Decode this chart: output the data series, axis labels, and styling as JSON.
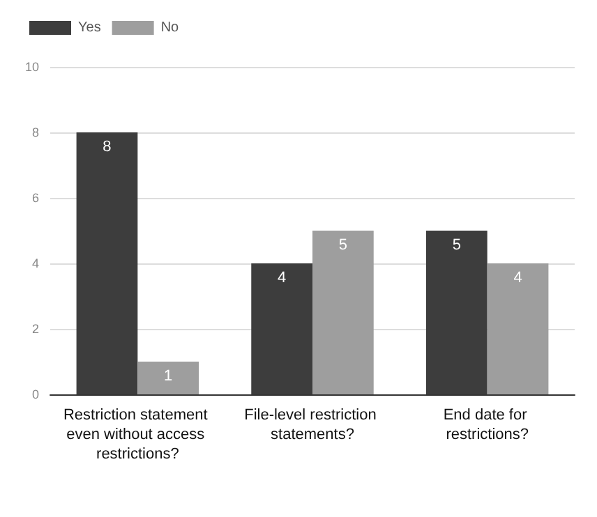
{
  "chart_data": {
    "type": "bar",
    "categories": [
      "Restriction statement even without access restrictions?",
      "File-level restriction statements?",
      "End date for restrictions?"
    ],
    "series": [
      {
        "name": "Yes",
        "color": "#3d3d3d",
        "values": [
          8,
          4,
          5
        ]
      },
      {
        "name": "No",
        "color": "#9e9e9e",
        "values": [
          1,
          5,
          4
        ]
      }
    ],
    "ylim": [
      0,
      10
    ],
    "yticks": [
      0,
      2,
      4,
      6,
      8,
      10
    ],
    "grid": "y",
    "legend": "top left",
    "data_labels": true
  }
}
